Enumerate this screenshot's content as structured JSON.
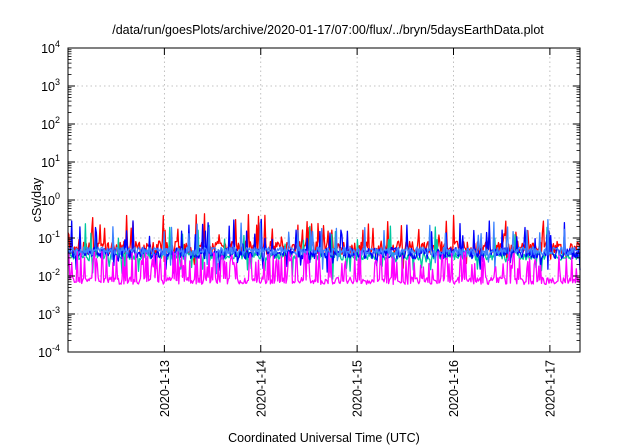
{
  "chart_data": {
    "type": "line",
    "title": "/data/run/goesPlots/archive/2020-01-17/07:00/flux/../bryn/5daysEarthData.plot",
    "xlabel": "Coordinated Universal Time (UTC)",
    "ylabel": "cSv/day",
    "yscale": "log",
    "ylim": [
      0.0001,
      10000
    ],
    "xlim": [
      "2020-01-12 00:00",
      "2020-01-17 07:30"
    ],
    "grid": true,
    "legend": "none",
    "y_ticks": [
      {
        "mantissa": "10",
        "exponent": "-4",
        "value": 0.0001
      },
      {
        "mantissa": "10",
        "exponent": "-3",
        "value": 0.001
      },
      {
        "mantissa": "10",
        "exponent": "-2",
        "value": 0.01
      },
      {
        "mantissa": "10",
        "exponent": "-1",
        "value": 0.1
      },
      {
        "mantissa": "10",
        "exponent": "0",
        "value": 1
      },
      {
        "mantissa": "10",
        "exponent": "1",
        "value": 10
      },
      {
        "mantissa": "10",
        "exponent": "2",
        "value": 100
      },
      {
        "mantissa": "10",
        "exponent": "3",
        "value": 1000
      },
      {
        "mantissa": "10",
        "exponent": "4",
        "value": 10000
      }
    ],
    "x_ticks": [
      {
        "label": "2020-1-13",
        "value": "2020-01-13 00:00"
      },
      {
        "label": "2020-1-14",
        "value": "2020-01-14 00:00"
      },
      {
        "label": "2020-1-15",
        "value": "2020-01-15 00:00"
      },
      {
        "label": "2020-1-16",
        "value": "2020-01-16 00:00"
      },
      {
        "label": "2020-1-17",
        "value": "2020-01-17 00:00"
      }
    ],
    "series": [
      {
        "color": "#ff0000",
        "base": 0.055,
        "spread": 1.5,
        "spike_prob": 0.1,
        "dip_prob": 0.02
      },
      {
        "color": "#00c8a0",
        "base": 0.034,
        "spread": 1.3,
        "spike_prob": 0.06,
        "dip_prob": 0.06
      },
      {
        "color": "#0000ff",
        "base": 0.04,
        "spread": 1.4,
        "spike_prob": 0.08,
        "dip_prob": 0.03
      },
      {
        "color": "#3c82ff",
        "base": 0.045,
        "spread": 1.3,
        "spike_prob": 0.06,
        "dip_prob": 0.03
      },
      {
        "color": "#ff00ff",
        "base": 0.0075,
        "spread": 1.25,
        "spike_prob": 0.3,
        "dip_prob": 0.0
      }
    ]
  }
}
